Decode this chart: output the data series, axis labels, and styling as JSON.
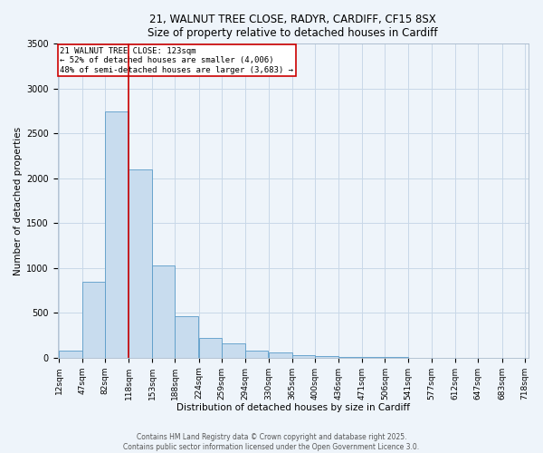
{
  "title_line1": "21, WALNUT TREE CLOSE, RADYR, CARDIFF, CF15 8SX",
  "title_line2": "Size of property relative to detached houses in Cardiff",
  "xlabel": "Distribution of detached houses by size in Cardiff",
  "ylabel": "Number of detached properties",
  "bin_edges": [
    12,
    47,
    82,
    118,
    153,
    188,
    224,
    259,
    294,
    330,
    365,
    400,
    436,
    471,
    506,
    541,
    577,
    612,
    647,
    683,
    718
  ],
  "bar_heights": [
    75,
    850,
    2750,
    2100,
    1030,
    460,
    215,
    155,
    75,
    55,
    30,
    20,
    10,
    5,
    3,
    2,
    1,
    0,
    0,
    0
  ],
  "bar_color": "#c8dcee",
  "bar_edge_color": "#5a9bc8",
  "red_line_x": 118,
  "annotation_title": "21 WALNUT TREE CLOSE: 123sqm",
  "annotation_line2": "← 52% of detached houses are smaller (4,006)",
  "annotation_line3": "48% of semi-detached houses are larger (3,683) →",
  "annotation_box_color": "#ffffff",
  "annotation_border_color": "#cc0000",
  "red_line_color": "#cc0000",
  "grid_color": "#c8d8e8",
  "background_color": "#eef4fa",
  "ylim": [
    0,
    3500
  ],
  "yticks": [
    0,
    500,
    1000,
    1500,
    2000,
    2500,
    3000,
    3500
  ],
  "footer_line1": "Contains HM Land Registry data © Crown copyright and database right 2025.",
  "footer_line2": "Contains public sector information licensed under the Open Government Licence 3.0."
}
